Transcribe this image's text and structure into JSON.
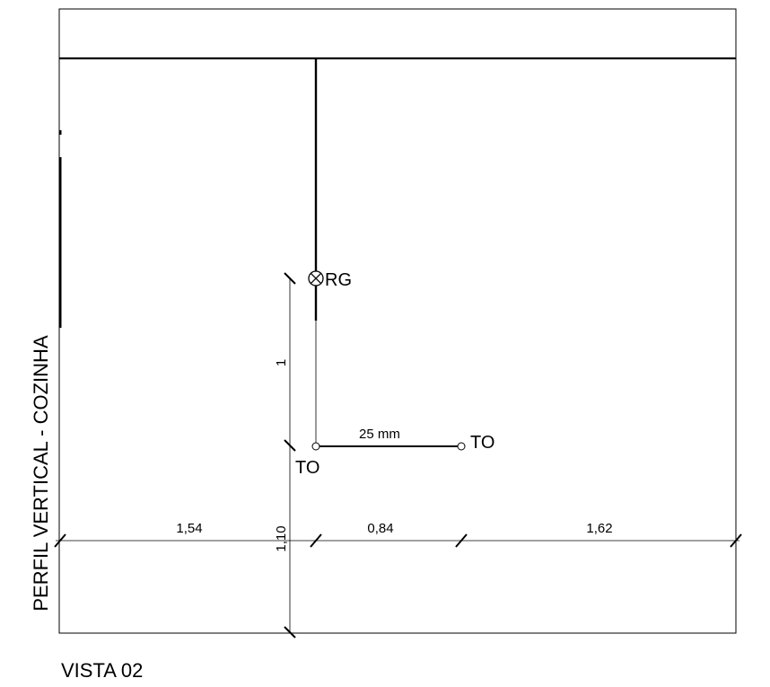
{
  "drawing": {
    "side_title": "PERFIL VERTICAL - COZINHA",
    "view_title": "VISTA 02",
    "points": {
      "rg_label": "RG",
      "to_lower_label": "TO",
      "to_right_label": "TO"
    },
    "pipe_label": "25 mm",
    "dimensions": {
      "horizontal": [
        "1,54",
        "0,84",
        "1,62"
      ],
      "vertical_upper": "1",
      "vertical_lower": "1,10"
    },
    "icons": {
      "rg_symbol": "circled-x-icon",
      "to_symbol": "open-circle-icon"
    }
  }
}
